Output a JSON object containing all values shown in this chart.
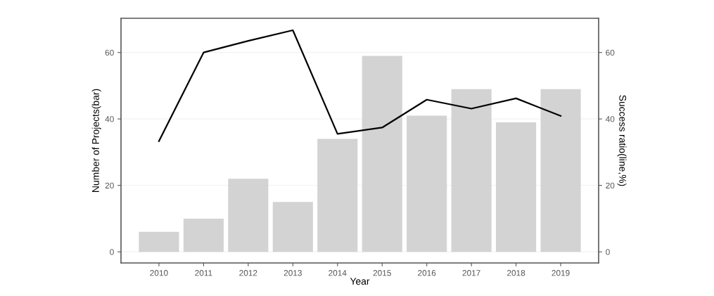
{
  "chart_data": {
    "type": "bar",
    "xlabel": "Year",
    "ylabel": "Number of Projects(bar)",
    "y2label": "Success ratio(line,%)",
    "categories": [
      "2010",
      "2011",
      "2012",
      "2013",
      "2014",
      "2015",
      "2016",
      "2017",
      "2018",
      "2019"
    ],
    "series": [
      {
        "color": "#d3d3d3",
        "values": [
          6,
          10,
          22,
          15,
          34,
          59,
          41,
          49,
          39,
          49
        ]
      },
      {
        "type": "line",
        "color": "#000000",
        "values": [
          33.3,
          60,
          63.5,
          66.7,
          35.5,
          37.4,
          45.8,
          43.1,
          46.2,
          40.9
        ]
      }
    ],
    "ylim": [
      -3.35,
      70.3
    ],
    "yticks": [
      0,
      20,
      40,
      60
    ],
    "y2lim": [
      -3.35,
      70.3
    ],
    "y2ticks": [
      0,
      20,
      40,
      60
    ],
    "grid": "y",
    "marker": "none",
    "line_style": "solid"
  }
}
